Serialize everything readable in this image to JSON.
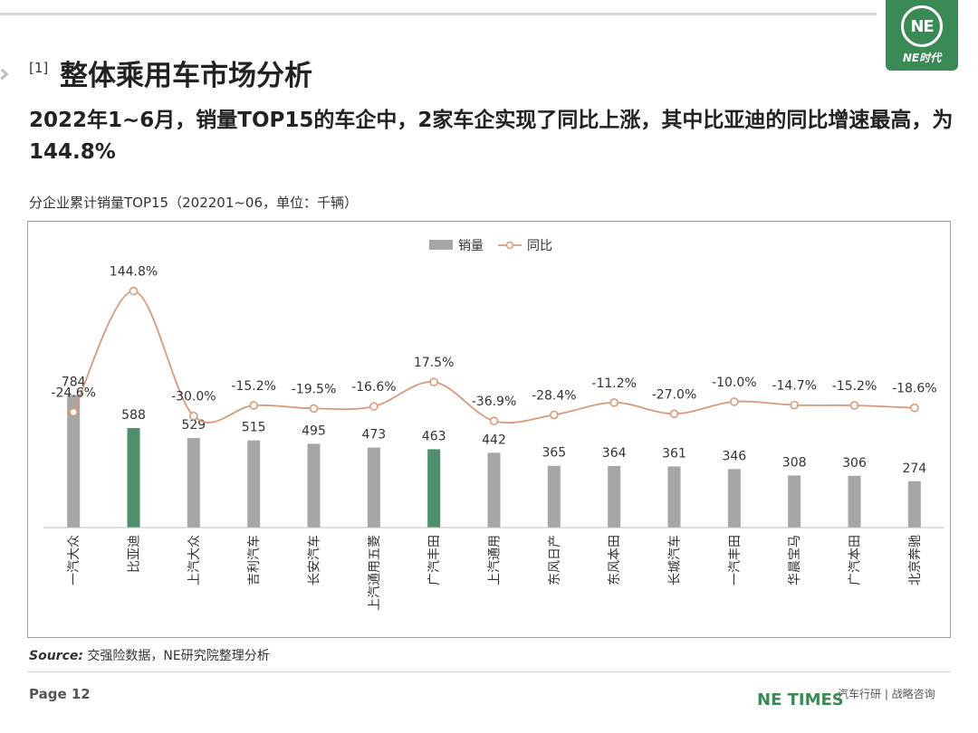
{
  "header": {
    "section_number": "[1]",
    "title": "整体乘用车市场分析",
    "logo_mark": "NE",
    "logo_text": "NE时代"
  },
  "headline": "2022年1~6月，销量TOP15的车企中，2家车企实现了同比上涨，其中比亚迪的同比增速最高，为144.8%",
  "chart_data": {
    "type": "bar",
    "title": "分企业累计销量TOP15（202201~06，单位：千辆）",
    "categories": [
      "一汽大众",
      "比亚迪",
      "上汽大众",
      "吉利汽车",
      "长安汽车",
      "上汽通用五菱",
      "广汽丰田",
      "上汽通用",
      "东风日产",
      "东风本田",
      "长城汽车",
      "一汽丰田",
      "华晨宝马",
      "广汽本田",
      "北京奔驰"
    ],
    "series": [
      {
        "name": "销量",
        "type": "bar",
        "values": [
          784,
          588,
          529,
          515,
          495,
          473,
          463,
          442,
          365,
          364,
          361,
          346,
          308,
          306,
          274
        ],
        "value_labels": [
          "784",
          "588",
          "529",
          "515",
          "495",
          "473",
          "463",
          "442",
          "365",
          "364",
          "361",
          "346",
          "308",
          "306",
          "274"
        ],
        "color": "#a6a6a6",
        "highlight_indices": [
          1,
          6
        ],
        "highlight_color": "#4e8f6e"
      },
      {
        "name": "同比",
        "type": "line",
        "values": [
          -24.6,
          144.8,
          -30.0,
          -15.2,
          -19.5,
          -16.6,
          17.5,
          -36.9,
          -28.4,
          -11.2,
          -27.0,
          -10.0,
          -14.7,
          -15.2,
          -18.6
        ],
        "value_labels": [
          "-24.6%",
          "144.8%",
          "-30.0%",
          "-15.2%",
          "-19.5%",
          "-16.6%",
          "17.5%",
          "-36.9%",
          "-28.4%",
          "-11.2%",
          "-27.0%",
          "-10.0%",
          "-14.7%",
          "-15.2%",
          "-18.6%"
        ],
        "color": "#d99a7a"
      }
    ],
    "legend_position": "top-center",
    "grid": false
  },
  "source": {
    "label": "Source:",
    "text": "交强险数据，NE研究院整理分析"
  },
  "footer": {
    "page": "Page 12",
    "brand": "NE TIMES",
    "tagline": "汽车行研 | 战略咨询"
  }
}
